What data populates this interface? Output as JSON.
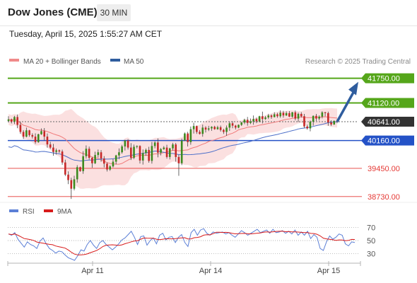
{
  "header": {
    "title": "Dow Jones (CME)",
    "interval": "30 MIN",
    "datetime": "Tuesday, April 15, 2025 1:55:27 AM CET"
  },
  "legend": {
    "ma20_bb": "MA 20 + Bollinger Bands",
    "ma50": "MA 50",
    "credit": "Research © 2025 Trading Central"
  },
  "rsi_legend": {
    "rsi": "RSI",
    "ma": "9MA"
  },
  "colors": {
    "green": "#55a61a",
    "blue": "#2452c7",
    "red": "#e53935",
    "current": "#333333",
    "bb_fill": "#f8c7c7",
    "ma20": "#f07a7a",
    "ma50": "#4d6fc9",
    "candle_up": "#3c8a1f",
    "candle_down": "#c62828",
    "arrow": "#2f5d9e",
    "rsi": "#5b7fd6",
    "rsi_ma": "#d81b1b"
  },
  "chart_data": {
    "type": "candlestick",
    "instrument": "Dow Jones (CME)",
    "timeframe": "30 MIN",
    "y_range": [
      38600,
      42050
    ],
    "x_labels": [
      "Apr 11",
      "Apr 14",
      "Apr 15"
    ],
    "levels": [
      {
        "value": 41750.0,
        "label": "41750.00",
        "kind": "resistance"
      },
      {
        "value": 41120.0,
        "label": "41120.00",
        "kind": "resistance"
      },
      {
        "value": 40641.0,
        "label": "40641.00",
        "kind": "current"
      },
      {
        "value": 40160.0,
        "label": "40160.00",
        "kind": "pivot"
      },
      {
        "value": 39450.0,
        "label": "39450.00",
        "kind": "support"
      },
      {
        "value": 38730.0,
        "label": "38730.00",
        "kind": "support"
      }
    ],
    "closes": [
      40700,
      40640,
      40760,
      40560,
      40380,
      40260,
      40420,
      40300,
      40260,
      40120,
      40320,
      40400,
      40260,
      40060,
      39980,
      39870,
      39910,
      39880,
      39600,
      39290,
      39150,
      38930,
      39170,
      39480,
      39380,
      39760,
      39950,
      39720,
      39580,
      39790,
      39860,
      39700,
      39570,
      39420,
      39500,
      39620,
      39780,
      39860,
      40010,
      40160,
      39980,
      39720,
      40000,
      40020,
      39650,
      39840,
      39920,
      39640,
      40020,
      40110,
      39850,
      39940,
      39980,
      39740,
      39960,
      40060,
      39740,
      39580,
      40160,
      40340,
      40120,
      40450,
      40530,
      40380,
      40330,
      40490,
      40440,
      40470,
      40510,
      40450,
      40500,
      40430,
      40380,
      40490,
      40600,
      40540,
      40490,
      40560,
      40620,
      40690,
      40610,
      40650,
      40710,
      40650,
      40780,
      40710,
      40750,
      40800,
      40760,
      40830,
      40780,
      40870,
      40800,
      40860,
      40770,
      40880,
      40720,
      40840,
      40780,
      40520,
      40470,
      40640,
      40790,
      40720,
      40770,
      40880,
      40860,
      40620,
      40570,
      40660,
      40641
    ],
    "overlays": {
      "ma20": "MA 20",
      "bollinger": "Bollinger Bands",
      "ma50": "MA 50"
    },
    "forecast_arrow": {
      "from": 40641.0,
      "to": 41750.0
    },
    "rsi": {
      "y_range": [
        20,
        80
      ],
      "ticks": [
        30,
        50,
        70
      ],
      "values": [
        60,
        58,
        62,
        52,
        46,
        40,
        48,
        44,
        42,
        38,
        49,
        54,
        45,
        38,
        35,
        31,
        34,
        33,
        28,
        24,
        22,
        20,
        27,
        36,
        34,
        44,
        50,
        43,
        38,
        47,
        50,
        44,
        40,
        36,
        40,
        45,
        51,
        54,
        59,
        64,
        55,
        44,
        56,
        57,
        43,
        50,
        54,
        45,
        58,
        61,
        51,
        55,
        56,
        47,
        55,
        59,
        47,
        41,
        62,
        67,
        58,
        66,
        68,
        61,
        58,
        63,
        61,
        62,
        63,
        60,
        62,
        58,
        55,
        60,
        65,
        62,
        58,
        61,
        64,
        67,
        62,
        64,
        66,
        61,
        67,
        62,
        63,
        65,
        61,
        64,
        60,
        66,
        58,
        63,
        58,
        64,
        53,
        59,
        55,
        38,
        35,
        48,
        57,
        52,
        55,
        60,
        58,
        45,
        42,
        48,
        47
      ]
    }
  }
}
